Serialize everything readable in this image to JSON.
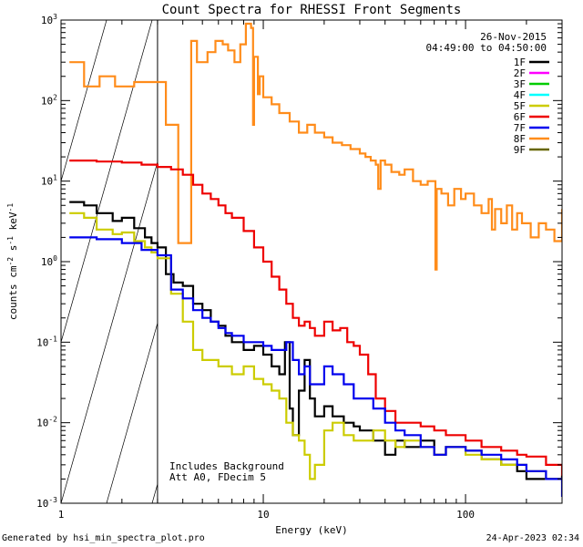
{
  "chart_data": {
    "type": "line",
    "title": "Count Spectra for RHESSI Front Segments",
    "xlabel": "Energy (keV)",
    "ylabel_base": "counts cm",
    "ylabel_exp1": "-2",
    "ylabel_mid": " s",
    "ylabel_exp2": "-1",
    "ylabel_end": " keV",
    "ylabel_exp3": "-1",
    "xscale": "log",
    "yscale": "log",
    "xlim": [
      1,
      300
    ],
    "ylim": [
      0.001,
      1000
    ],
    "x_ticks": [
      {
        "value": 1,
        "label": "1"
      },
      {
        "value": 10,
        "label": "10"
      },
      {
        "value": 100,
        "label": "100"
      }
    ],
    "y_ticks": [
      {
        "value": 0.001,
        "base": "10",
        "exp": "-3"
      },
      {
        "value": 0.01,
        "base": "10",
        "exp": "-2"
      },
      {
        "value": 0.1,
        "base": "10",
        "exp": "-1"
      },
      {
        "value": 1,
        "base": "10",
        "exp": "0"
      },
      {
        "value": 10,
        "base": "10",
        "exp": "1"
      },
      {
        "value": 100,
        "base": "10",
        "exp": "2"
      },
      {
        "value": 1000,
        "base": "10",
        "exp": "3"
      }
    ],
    "date": "26-Nov-2015",
    "time_range": "04:49:00 to 04:50:00",
    "annotation_lines": [
      "Includes Background",
      "Att A0, FDecim 5"
    ],
    "hatched_below_keV": 3,
    "legend_position": "top-right",
    "legend": [
      {
        "name": "1F",
        "color": "#000000"
      },
      {
        "name": "2F",
        "color": "#ff00ff"
      },
      {
        "name": "3F",
        "color": "#00cc00"
      },
      {
        "name": "4F",
        "color": "#00ffff"
      },
      {
        "name": "5F",
        "color": "#cccc00"
      },
      {
        "name": "6F",
        "color": "#ee0000"
      },
      {
        "name": "7F",
        "color": "#0000ee"
      },
      {
        "name": "8F",
        "color": "#ff8c1a"
      },
      {
        "name": "9F",
        "color": "#666600"
      }
    ],
    "series": [
      {
        "name": "8F",
        "color": "#ff8c1a",
        "x": [
          1.1,
          1.3,
          1.3,
          1.55,
          1.55,
          1.85,
          1.85,
          2.3,
          2.3,
          3.0,
          3.3,
          3.6,
          3.8,
          3.8,
          4.4,
          4.4,
          4.7,
          4.7,
          5.3,
          5.3,
          5.8,
          5.8,
          6.3,
          6.7,
          7.2,
          7.7,
          8.2,
          8.7,
          8.9,
          9.0,
          9.4,
          9.6,
          10.0,
          11.0,
          12.0,
          13.5,
          15.0,
          16.5,
          18.0,
          20.0,
          22.0,
          24.5,
          27.0,
          30.0,
          32.0,
          34.0,
          36.0,
          37.0,
          38.0,
          40.0,
          43.0,
          47.0,
          50.0,
          55.0,
          60.0,
          65.0,
          70.0,
          71.0,
          72.0,
          76.0,
          82.0,
          88.0,
          95.0,
          100.0,
          110.0,
          120.0,
          130.0,
          135.0,
          140.0,
          150.0,
          160.0,
          170.0,
          180.0,
          190.0,
          210.0,
          230.0,
          250.0,
          275.0,
          300.0
        ],
        "values": [
          300,
          300,
          150,
          150,
          200,
          200,
          150,
          150,
          170,
          170,
          50,
          50,
          50,
          1.7,
          1.7,
          550,
          550,
          300,
          300,
          400,
          400,
          550,
          500,
          420,
          300,
          500,
          900,
          800,
          50,
          350,
          120,
          200,
          110,
          90,
          70,
          55,
          40,
          50,
          40,
          35,
          30,
          28,
          25,
          22,
          20,
          18,
          16,
          8,
          18,
          16,
          13,
          12,
          14,
          10,
          9,
          10,
          10,
          0.8,
          8,
          7,
          5,
          8,
          6,
          7,
          5,
          4,
          6,
          2.5,
          4.5,
          3,
          5,
          2.5,
          4,
          3,
          2,
          3,
          2.5,
          1.8,
          4.5
        ]
      },
      {
        "name": "6F",
        "color": "#ee0000",
        "x": [
          1.1,
          1.5,
          2.0,
          2.5,
          3.0,
          3.5,
          4.0,
          4.5,
          5.0,
          5.5,
          6.0,
          6.5,
          7.0,
          8.0,
          9.0,
          10.0,
          11.0,
          12.0,
          13.0,
          14.0,
          15.0,
          16.0,
          17.0,
          18.0,
          20.0,
          22.0,
          24.0,
          26.0,
          28.0,
          30.0,
          33.0,
          36.0,
          40.0,
          45.0,
          50.0,
          60.0,
          70.0,
          80.0,
          100.0,
          120.0,
          150.0,
          180.0,
          200.0,
          250.0,
          300.0
        ],
        "values": [
          18,
          17.5,
          17,
          16,
          15,
          14,
          12,
          9,
          7,
          6,
          5,
          4,
          3.5,
          2.4,
          1.5,
          1.0,
          0.65,
          0.45,
          0.3,
          0.2,
          0.16,
          0.18,
          0.15,
          0.12,
          0.18,
          0.14,
          0.15,
          0.1,
          0.09,
          0.07,
          0.04,
          0.02,
          0.014,
          0.01,
          0.01,
          0.009,
          0.008,
          0.007,
          0.006,
          0.005,
          0.0045,
          0.004,
          0.0038,
          0.003,
          0.002
        ]
      },
      {
        "name": "1F",
        "color": "#000000",
        "x": [
          1.1,
          1.3,
          1.5,
          1.8,
          2.0,
          2.3,
          2.6,
          2.8,
          3.0,
          3.3,
          3.6,
          4.0,
          4.5,
          5.0,
          5.5,
          6.0,
          6.5,
          7.0,
          8.0,
          9.0,
          10.0,
          11.0,
          12.0,
          12.8,
          13.5,
          14.0,
          15.0,
          16.0,
          17.0,
          18.0,
          20.0,
          22.0,
          25.0,
          28.0,
          30.0,
          35.0,
          40.0,
          45.0,
          50.0,
          60.0,
          70.0,
          80.0,
          100.0,
          120.0,
          150.0,
          180.0,
          200.0,
          250.0,
          300.0
        ],
        "values": [
          5.5,
          5,
          4,
          3.2,
          3.5,
          2.6,
          2,
          1.7,
          1.5,
          0.7,
          0.55,
          0.5,
          0.3,
          0.25,
          0.18,
          0.16,
          0.12,
          0.1,
          0.08,
          0.09,
          0.07,
          0.05,
          0.04,
          0.1,
          0.015,
          0.007,
          0.025,
          0.06,
          0.02,
          0.012,
          0.016,
          0.012,
          0.01,
          0.009,
          0.008,
          0.006,
          0.004,
          0.006,
          0.005,
          0.006,
          0.004,
          0.005,
          0.0045,
          0.0035,
          0.003,
          0.0025,
          0.002,
          0.002,
          0.0022
        ]
      },
      {
        "name": "5F",
        "color": "#cccc00",
        "x": [
          1.1,
          1.3,
          1.5,
          1.8,
          2.0,
          2.3,
          2.6,
          2.8,
          3.0,
          3.5,
          4.0,
          4.5,
          5.0,
          6.0,
          7.0,
          8.0,
          9.0,
          10.0,
          11.0,
          12.0,
          13.0,
          14.0,
          15.0,
          16.0,
          17.0,
          18.0,
          20.0,
          22.0,
          25.0,
          28.0,
          30.0,
          35.0,
          40.0,
          45.0,
          50.0,
          60.0,
          70.0,
          80.0,
          100.0,
          120.0,
          150.0,
          200.0,
          250.0,
          300.0
        ],
        "values": [
          4,
          3.5,
          2.5,
          2.2,
          2.3,
          1.8,
          1.5,
          1.3,
          1.1,
          0.4,
          0.18,
          0.08,
          0.06,
          0.05,
          0.04,
          0.05,
          0.035,
          0.03,
          0.025,
          0.02,
          0.01,
          0.007,
          0.006,
          0.004,
          0.002,
          0.003,
          0.008,
          0.01,
          0.007,
          0.006,
          0.006,
          0.008,
          0.006,
          0.005,
          0.006,
          0.005,
          0.004,
          0.005,
          0.004,
          0.0035,
          0.003,
          0.0025,
          0.002,
          0.0018
        ]
      },
      {
        "name": "7F",
        "color": "#0000ee",
        "x": [
          1.1,
          1.5,
          2.0,
          2.5,
          3.0,
          3.5,
          4.0,
          4.5,
          5.0,
          5.5,
          6.0,
          6.5,
          7.0,
          8.0,
          9.0,
          10.0,
          11.0,
          12.0,
          13.0,
          14.0,
          15.0,
          16.0,
          17.0,
          18.0,
          20.0,
          22.0,
          25.0,
          28.0,
          30.0,
          35.0,
          40.0,
          45.0,
          50.0,
          60.0,
          70.0,
          80.0,
          100.0,
          120.0,
          150.0,
          180.0,
          200.0,
          250.0,
          300.0
        ],
        "values": [
          2,
          1.9,
          1.7,
          1.4,
          1.2,
          0.45,
          0.35,
          0.25,
          0.2,
          0.18,
          0.15,
          0.13,
          0.12,
          0.1,
          0.1,
          0.09,
          0.08,
          0.08,
          0.1,
          0.06,
          0.04,
          0.05,
          0.03,
          0.03,
          0.05,
          0.04,
          0.03,
          0.02,
          0.02,
          0.015,
          0.01,
          0.008,
          0.007,
          0.005,
          0.004,
          0.005,
          0.0045,
          0.004,
          0.0035,
          0.003,
          0.0025,
          0.002,
          0.0012
        ]
      }
    ]
  },
  "footer": {
    "left": "Generated by hsi_min_spectra_plot.pro",
    "right": "24-Apr-2023 02:34"
  }
}
